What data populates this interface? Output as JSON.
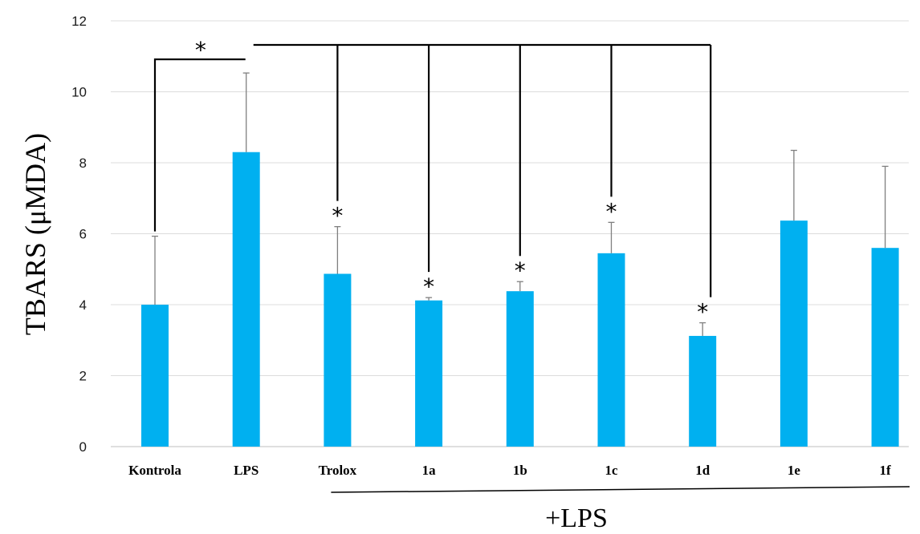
{
  "chart_data": {
    "type": "bar",
    "categories": [
      "Kontrola",
      "LPS",
      "Trolox",
      "1a",
      "1b",
      "1c",
      "1d",
      "1e",
      "1f"
    ],
    "values": [
      4.0,
      8.3,
      4.87,
      4.12,
      4.38,
      5.45,
      3.12,
      6.37,
      5.6
    ],
    "errors": [
      1.93,
      2.23,
      1.33,
      0.08,
      0.27,
      0.87,
      0.37,
      1.98,
      2.3
    ],
    "ylabel": "TBARS (μMDA)",
    "xlabel": "",
    "ylim": [
      0,
      12
    ],
    "yticks": [
      0,
      2,
      4,
      6,
      8,
      10,
      12
    ],
    "grid": true,
    "bar_color": "#00b0f0",
    "error_color": "#7f7f7f",
    "group_label": "+LPS",
    "group_members": [
      "Trolox",
      "1a",
      "1b",
      "1c",
      "1d",
      "1e",
      "1f"
    ],
    "significance_marker": "*",
    "significance_vs_control": [
      "LPS"
    ],
    "significance_vs_lps": [
      "Trolox",
      "1a",
      "1b",
      "1c",
      "1d"
    ]
  }
}
